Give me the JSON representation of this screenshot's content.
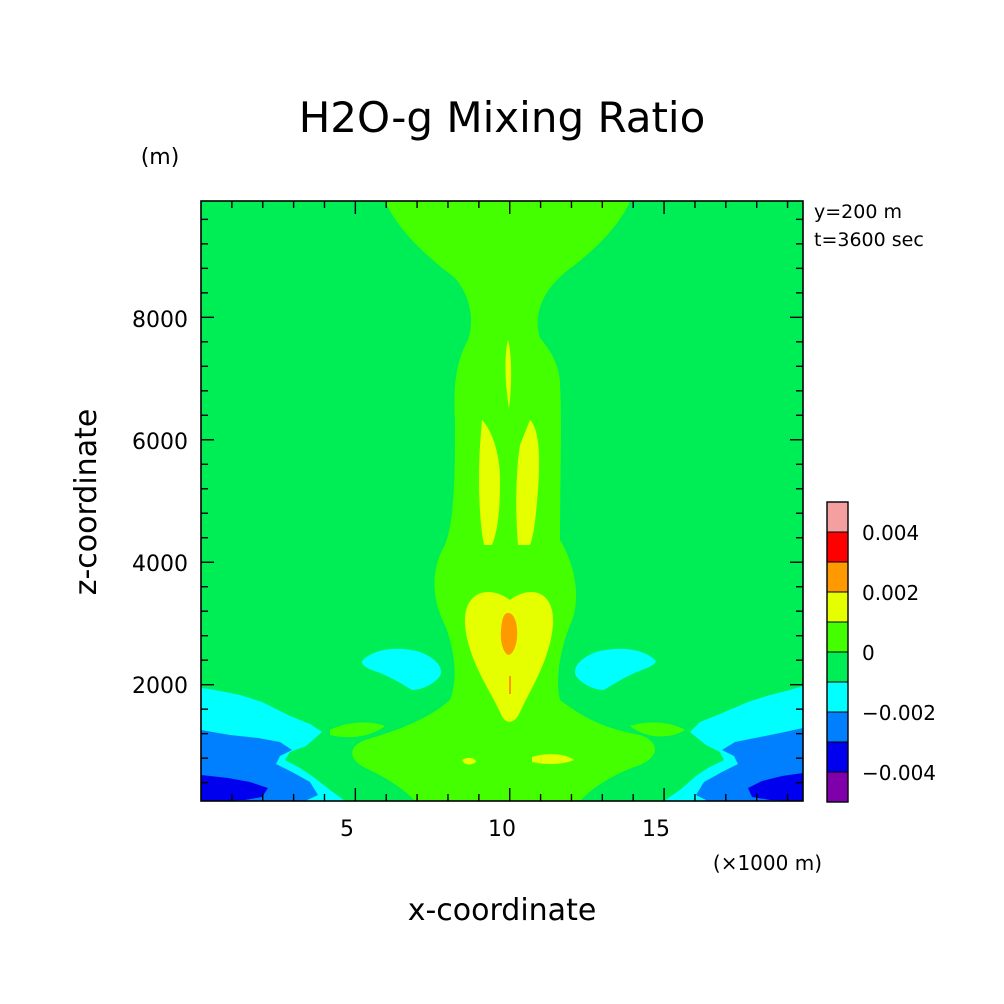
{
  "chart_data": {
    "type": "contour",
    "title": "H2O-g Mixing Ratio",
    "xlabel": "x-coordinate",
    "ylabel": "z-coordinate",
    "x_unit": "(×1000 m)",
    "y_unit": "(m)",
    "annotations": [
      "y=200 m",
      "t=3600 sec"
    ],
    "xlim": [
      0,
      19.5
    ],
    "ylim": [
      100,
      9900
    ],
    "x_ticks": [
      5,
      10,
      15
    ],
    "y_ticks": [
      2000,
      4000,
      6000,
      8000
    ],
    "colorbar": {
      "tick_values": [
        0.004,
        0.002,
        0,
        -0.002,
        -0.004
      ],
      "tick_labels": [
        "0.004",
        "0.002",
        "0",
        "−0.002",
        "−0.004"
      ],
      "levels": [
        {
          "range": [
            0.004,
            0.005
          ],
          "color": "#f4a0a0"
        },
        {
          "range": [
            0.003,
            0.004
          ],
          "color": "#ff0000"
        },
        {
          "range": [
            0.002,
            0.003
          ],
          "color": "#ff9900"
        },
        {
          "range": [
            0.001,
            0.002
          ],
          "color": "#e6ff00"
        },
        {
          "range": [
            0.0,
            0.001
          ],
          "color": "#44ff00"
        },
        {
          "range": [
            -0.001,
            0.0
          ],
          "color": "#00ee55"
        },
        {
          "range": [
            -0.002,
            -0.001
          ],
          "color": "#00ffff"
        },
        {
          "range": [
            -0.003,
            -0.002
          ],
          "color": "#0080ff"
        },
        {
          "range": [
            -0.004,
            -0.003
          ],
          "color": "#0000ee"
        },
        {
          "range": [
            -0.005,
            -0.004
          ],
          "color": "#7f00aa"
        }
      ]
    }
  }
}
